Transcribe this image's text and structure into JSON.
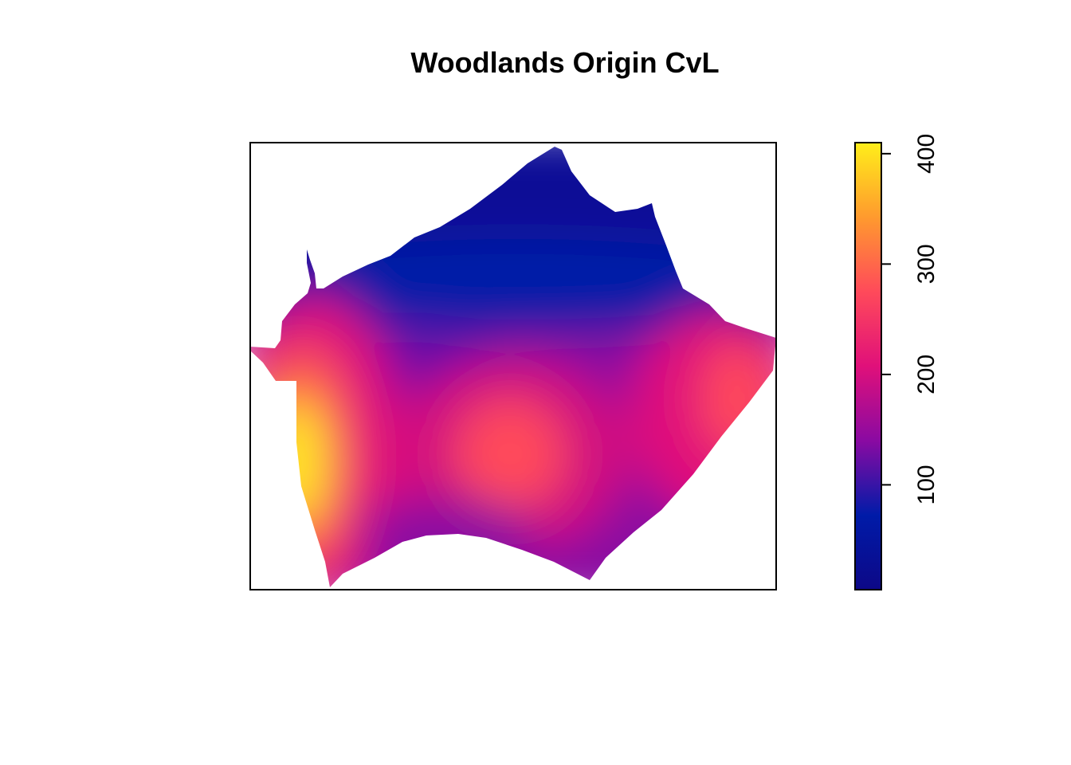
{
  "chart_data": {
    "type": "heatmap",
    "title": "Woodlands Origin CvL",
    "xlabel": "",
    "ylabel": "",
    "axes_visible": false,
    "legend": {
      "placement": "right",
      "type": "colorbar",
      "range": [
        5,
        410
      ],
      "ticks": [
        100,
        200,
        300,
        400
      ],
      "tick_labels": [
        "100",
        "200",
        "300",
        "400"
      ],
      "colors": [
        "#0d0887",
        "#001ba8",
        "#8a0aa2",
        "#e0107a",
        "#ff4a5a",
        "#ff9a2e",
        "#ffee1a"
      ]
    },
    "surface": {
      "background_value": 20,
      "hotspots": [
        {
          "name": "west",
          "value": 410
        },
        {
          "name": "center",
          "value": 240
        },
        {
          "name": "east",
          "value": 215
        }
      ]
    }
  }
}
